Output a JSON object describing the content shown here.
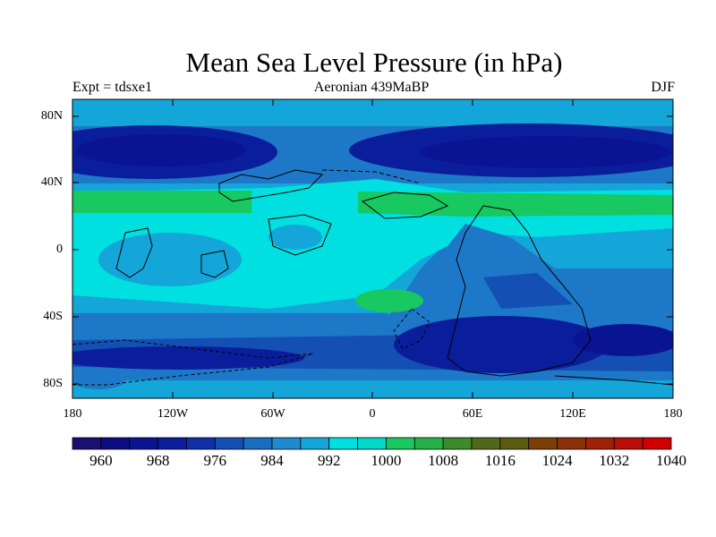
{
  "title": "Mean Sea Level Pressure (in hPa)",
  "experiment": "Expt = tdsxe1",
  "period": "Aeronian 439MaBP",
  "season": "DJF",
  "map": {
    "lat_labels": [
      "80N",
      "40N",
      "0",
      "40S",
      "80S"
    ],
    "lon_labels": [
      "180",
      "120W",
      "60W",
      "0",
      "60E",
      "120E",
      "180"
    ]
  },
  "colorbar": {
    "labels": [
      "960",
      "968",
      "976",
      "984",
      "992",
      "1000",
      "1008",
      "1016",
      "1024",
      "1032",
      "1040"
    ],
    "colors": [
      "#1a0f73",
      "#0d0d82",
      "#0a1492",
      "#0a1e9b",
      "#0f2fa8",
      "#1450b4",
      "#1a6ec0",
      "#1e8ad0",
      "#14a6d8",
      "#00e0e0",
      "#00d8c8",
      "#18c860",
      "#28b048",
      "#3c8a28",
      "#506818",
      "#5a5a10",
      "#7a4008",
      "#8c3008",
      "#a02008",
      "#b81008",
      "#d00000"
    ]
  },
  "colors": {
    "deep_low": "#0a1e8c",
    "low": "#1450b4",
    "mid_low": "#1e78c8",
    "mid": "#14a6d8",
    "high": "#00e0e0",
    "subtropical_high": "#18c860"
  }
}
